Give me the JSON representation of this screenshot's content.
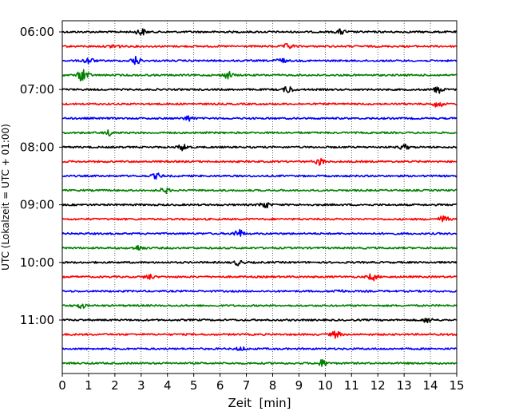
{
  "chart_data": {
    "type": "line",
    "title": "",
    "xlabel": "Zeit  [min]",
    "ylabel": "UTC (Lokalzeit = UTC + 01:00)",
    "x_ticks": [
      0,
      1,
      2,
      3,
      4,
      5,
      6,
      7,
      8,
      9,
      10,
      11,
      12,
      13,
      14,
      15
    ],
    "xlim": [
      0,
      15
    ],
    "y_ticks": [
      "06:00",
      "07:00",
      "08:00",
      "09:00",
      "10:00",
      "11:00"
    ],
    "trace_interval_minutes": 15,
    "row_colors": [
      "#000000",
      "#ff0000",
      "#0000ff",
      "#008000"
    ],
    "grid": "vertical dotted",
    "traces": [
      {
        "utc": "06:00",
        "color": "#000000",
        "events": [
          {
            "x": 3.0,
            "amp": 4
          },
          {
            "x": 10.6,
            "amp": 3
          }
        ]
      },
      {
        "utc": "06:15",
        "color": "#ff0000",
        "events": [
          {
            "x": 2.0,
            "amp": 3
          },
          {
            "x": 8.6,
            "amp": 3
          }
        ]
      },
      {
        "utc": "06:30",
        "color": "#0000ff",
        "events": [
          {
            "x": 1.0,
            "amp": 4
          },
          {
            "x": 2.8,
            "amp": 5
          },
          {
            "x": 8.3,
            "amp": 3
          }
        ]
      },
      {
        "utc": "06:45",
        "color": "#008000",
        "events": [
          {
            "x": 0.8,
            "amp": 9
          },
          {
            "x": 6.3,
            "amp": 4
          }
        ]
      },
      {
        "utc": "07:00",
        "color": "#000000",
        "events": [
          {
            "x": 8.6,
            "amp": 4
          },
          {
            "x": 14.3,
            "amp": 4
          }
        ]
      },
      {
        "utc": "07:15",
        "color": "#ff0000",
        "events": [
          {
            "x": 14.3,
            "amp": 4
          }
        ]
      },
      {
        "utc": "07:30",
        "color": "#0000ff",
        "events": [
          {
            "x": 4.8,
            "amp": 3
          }
        ]
      },
      {
        "utc": "07:45",
        "color": "#008000",
        "events": [
          {
            "x": 1.8,
            "amp": 3
          }
        ]
      },
      {
        "utc": "08:00",
        "color": "#000000",
        "events": [
          {
            "x": 4.6,
            "amp": 4
          },
          {
            "x": 13.0,
            "amp": 3
          }
        ]
      },
      {
        "utc": "08:15",
        "color": "#ff0000",
        "events": [
          {
            "x": 9.8,
            "amp": 4
          }
        ]
      },
      {
        "utc": "08:30",
        "color": "#0000ff",
        "events": [
          {
            "x": 3.6,
            "amp": 3
          }
        ]
      },
      {
        "utc": "08:45",
        "color": "#008000",
        "events": [
          {
            "x": 3.9,
            "amp": 3
          }
        ]
      },
      {
        "utc": "09:00",
        "color": "#000000",
        "events": [
          {
            "x": 7.7,
            "amp": 4
          }
        ]
      },
      {
        "utc": "09:15",
        "color": "#ff0000",
        "events": [
          {
            "x": 14.5,
            "amp": 4
          }
        ]
      },
      {
        "utc": "09:30",
        "color": "#0000ff",
        "events": [
          {
            "x": 6.7,
            "amp": 5
          }
        ]
      },
      {
        "utc": "09:45",
        "color": "#008000",
        "events": [
          {
            "x": 2.9,
            "amp": 3
          }
        ]
      },
      {
        "utc": "10:00",
        "color": "#000000",
        "events": [
          {
            "x": 6.7,
            "amp": 3
          }
        ]
      },
      {
        "utc": "10:15",
        "color": "#ff0000",
        "events": [
          {
            "x": 3.3,
            "amp": 3
          },
          {
            "x": 11.8,
            "amp": 4
          }
        ]
      },
      {
        "utc": "10:30",
        "color": "#0000ff",
        "events": [
          {
            "x": 10.5,
            "amp": 2
          }
        ]
      },
      {
        "utc": "10:45",
        "color": "#008000",
        "events": [
          {
            "x": 0.7,
            "amp": 3
          }
        ]
      },
      {
        "utc": "11:00",
        "color": "#000000",
        "events": [
          {
            "x": 13.9,
            "amp": 3
          }
        ]
      },
      {
        "utc": "11:15",
        "color": "#ff0000",
        "events": [
          {
            "x": 10.4,
            "amp": 4
          }
        ]
      },
      {
        "utc": "11:30",
        "color": "#0000ff",
        "events": [
          {
            "x": 6.8,
            "amp": 2
          }
        ]
      },
      {
        "utc": "11:45",
        "color": "#008000",
        "events": [
          {
            "x": 9.9,
            "amp": 4
          }
        ]
      }
    ]
  }
}
